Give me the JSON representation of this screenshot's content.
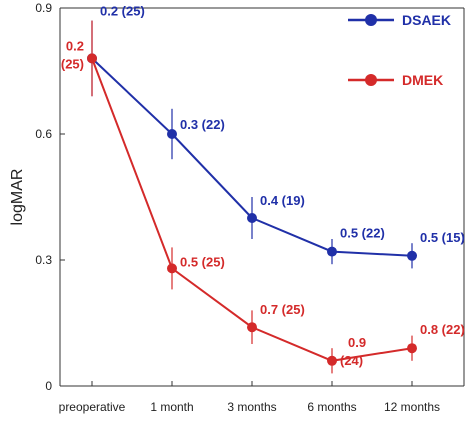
{
  "chart_data": {
    "type": "line",
    "title": "",
    "xlabel": "",
    "ylabel": "logMAR",
    "categories": [
      "preoperative",
      "1 month",
      "3 months",
      "6 months",
      "12 months"
    ],
    "yticks": [
      "0",
      "0.3",
      "0.6",
      "0.9"
    ],
    "ylim": [
      0,
      0.9
    ],
    "grid": false,
    "legend_position": "top-right",
    "series": [
      {
        "name": "DSAEK",
        "color": "#2030a8",
        "values": [
          0.78,
          0.6,
          0.4,
          0.32,
          0.31
        ],
        "error": [
          0.09,
          0.06,
          0.05,
          0.03,
          0.03
        ],
        "labels": [
          "0.2 (25)",
          "0.3 (22)",
          "0.4 (19)",
          "0.5 (22)",
          "0.5 (15)"
        ]
      },
      {
        "name": "DMEK",
        "color": "#d42a2a",
        "values": [
          0.78,
          0.28,
          0.14,
          0.06,
          0.09
        ],
        "error": [
          0.09,
          0.05,
          0.04,
          0.03,
          0.03
        ],
        "labels": [
          "0.2 (25)",
          "0.5 (25)",
          "0.7 (25)",
          "0.9 (24)",
          "0.8 (22)"
        ]
      }
    ]
  }
}
